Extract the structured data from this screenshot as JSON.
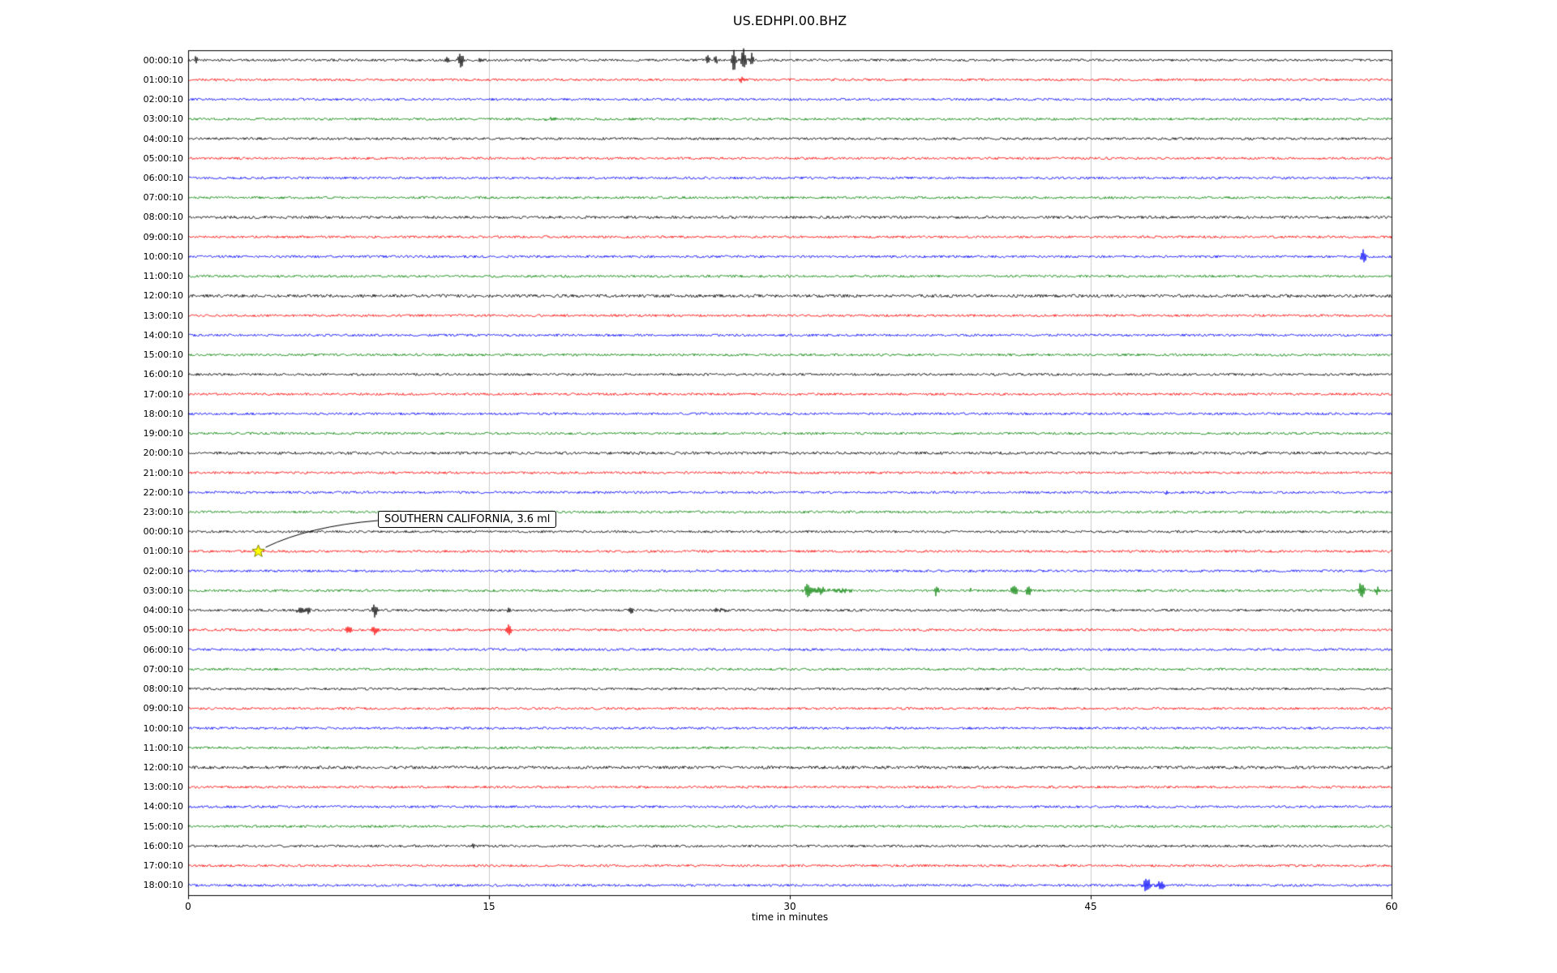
{
  "chart_data": {
    "type": "line",
    "subtype": "helicorder-seismogram",
    "title": "US.EDHPI.00.BHZ",
    "xlabel": "time in minutes",
    "xlim": [
      0,
      60
    ],
    "x_ticks": [
      "0",
      "15",
      "30",
      "45",
      "60"
    ],
    "x_tick_values": [
      0,
      15,
      30,
      45,
      60
    ],
    "grid": true,
    "grid_color": "#cccccc",
    "trace_color_cycle": [
      "#000000",
      "#ff0000",
      "#0000ff",
      "#008000"
    ],
    "annotation": {
      "text": "SOUTHERN CALIFORNIA, 3.6 ml",
      "row_index": 25,
      "row_label": "01:00:10",
      "minute": 3.5,
      "marker": "star",
      "marker_color": "#ffff00",
      "marker_edge_color": "#808000"
    },
    "rows": [
      {
        "label": "00:00:10",
        "color": "#000000",
        "events": [
          {
            "m": 0.4,
            "a": 4
          },
          {
            "m": 12.9,
            "a": 5
          },
          {
            "m": 13.6,
            "a": 9,
            "w": 0.1
          },
          {
            "m": 14.6,
            "a": 4
          },
          {
            "m": 25.9,
            "a": 6
          },
          {
            "m": 26.3,
            "a": 5
          },
          {
            "m": 27.2,
            "a": 13,
            "w": 0.09
          },
          {
            "m": 27.7,
            "a": 16,
            "w": 0.09
          },
          {
            "m": 28.1,
            "a": 9
          }
        ]
      },
      {
        "label": "01:00:10",
        "color": "#ff0000",
        "events": [
          {
            "m": 27.6,
            "a": 4
          }
        ]
      },
      {
        "label": "02:00:10",
        "color": "#0000ff",
        "events": []
      },
      {
        "label": "03:00:10",
        "color": "#008000",
        "events": [
          {
            "m": 18.2,
            "a": 2,
            "w": 0.3
          }
        ]
      },
      {
        "label": "04:00:10",
        "color": "#000000",
        "events": []
      },
      {
        "label": "05:00:10",
        "color": "#ff0000",
        "events": []
      },
      {
        "label": "06:00:10",
        "color": "#0000ff",
        "events": []
      },
      {
        "label": "07:00:10",
        "color": "#008000",
        "events": []
      },
      {
        "label": "08:00:10",
        "color": "#000000",
        "noise": 1.7,
        "events": []
      },
      {
        "label": "09:00:10",
        "color": "#ff0000",
        "events": []
      },
      {
        "label": "10:00:10",
        "color": "#0000ff",
        "events": [
          {
            "m": 58.6,
            "a": 10,
            "w": 0.09
          }
        ]
      },
      {
        "label": "11:00:10",
        "color": "#008000",
        "events": []
      },
      {
        "label": "12:00:10",
        "color": "#000000",
        "noise": 1.9,
        "events": []
      },
      {
        "label": "13:00:10",
        "color": "#ff0000",
        "events": []
      },
      {
        "label": "14:00:10",
        "color": "#0000ff",
        "events": []
      },
      {
        "label": "15:00:10",
        "color": "#008000",
        "events": []
      },
      {
        "label": "16:00:10",
        "color": "#000000",
        "events": []
      },
      {
        "label": "17:00:10",
        "color": "#ff0000",
        "events": []
      },
      {
        "label": "18:00:10",
        "color": "#0000ff",
        "events": []
      },
      {
        "label": "19:00:10",
        "color": "#008000",
        "events": []
      },
      {
        "label": "20:00:10",
        "color": "#000000",
        "noise": 1.7,
        "events": []
      },
      {
        "label": "21:00:10",
        "color": "#ff0000",
        "events": []
      },
      {
        "label": "22:00:10",
        "color": "#0000ff",
        "events": [
          {
            "m": 48.8,
            "a": 3
          }
        ]
      },
      {
        "label": "23:00:10",
        "color": "#008000",
        "events": []
      },
      {
        "label": "00:00:10",
        "color": "#000000",
        "events": []
      },
      {
        "label": "01:00:10",
        "color": "#ff0000",
        "events": [
          {
            "m": 3.5,
            "a": 3
          }
        ]
      },
      {
        "label": "02:00:10",
        "color": "#0000ff",
        "events": []
      },
      {
        "label": "03:00:10",
        "color": "#008000",
        "events": [
          {
            "m": 30.9,
            "a": 10,
            "w": 0.1
          },
          {
            "m": 31.5,
            "a": 4,
            "w": 0.3
          },
          {
            "m": 32.6,
            "a": 3,
            "w": 0.3
          },
          {
            "m": 37.3,
            "a": 6,
            "w": 0.09
          },
          {
            "m": 39.0,
            "a": 4
          },
          {
            "m": 41.2,
            "a": 7,
            "w": 0.12
          },
          {
            "m": 41.9,
            "a": 6,
            "w": 0.09
          },
          {
            "m": 58.5,
            "a": 11,
            "w": 0.1
          },
          {
            "m": 59.3,
            "a": 5
          }
        ]
      },
      {
        "label": "04:00:10",
        "color": "#000000",
        "events": [
          {
            "m": 5.6,
            "a": 5,
            "w": 0.12
          },
          {
            "m": 6.0,
            "a": 4
          },
          {
            "m": 9.3,
            "a": 9,
            "w": 0.09
          },
          {
            "m": 16.0,
            "a": 4
          },
          {
            "m": 22.1,
            "a": 4
          },
          {
            "m": 26.5,
            "a": 2,
            "w": 0.3
          }
        ]
      },
      {
        "label": "05:00:10",
        "color": "#ff0000",
        "events": [
          {
            "m": 8.0,
            "a": 4,
            "w": 0.15
          },
          {
            "m": 9.3,
            "a": 6,
            "w": 0.1
          },
          {
            "m": 16.0,
            "a": 7,
            "w": 0.09
          }
        ]
      },
      {
        "label": "06:00:10",
        "color": "#0000ff",
        "events": []
      },
      {
        "label": "07:00:10",
        "color": "#008000",
        "events": []
      },
      {
        "label": "08:00:10",
        "color": "#000000",
        "events": []
      },
      {
        "label": "09:00:10",
        "color": "#ff0000",
        "events": []
      },
      {
        "label": "10:00:10",
        "color": "#0000ff",
        "events": []
      },
      {
        "label": "11:00:10",
        "color": "#008000",
        "events": []
      },
      {
        "label": "12:00:10",
        "color": "#000000",
        "noise": 1.9,
        "events": []
      },
      {
        "label": "13:00:10",
        "color": "#ff0000",
        "events": []
      },
      {
        "label": "14:00:10",
        "color": "#0000ff",
        "events": []
      },
      {
        "label": "15:00:10",
        "color": "#008000",
        "events": []
      },
      {
        "label": "16:00:10",
        "color": "#000000",
        "events": [
          {
            "m": 14.2,
            "a": 3
          }
        ]
      },
      {
        "label": "17:00:10",
        "color": "#ff0000",
        "events": []
      },
      {
        "label": "18:00:10",
        "color": "#0000ff",
        "events": [
          {
            "m": 47.8,
            "a": 9,
            "w": 0.13
          },
          {
            "m": 48.5,
            "a": 5,
            "w": 0.18
          }
        ]
      }
    ]
  }
}
